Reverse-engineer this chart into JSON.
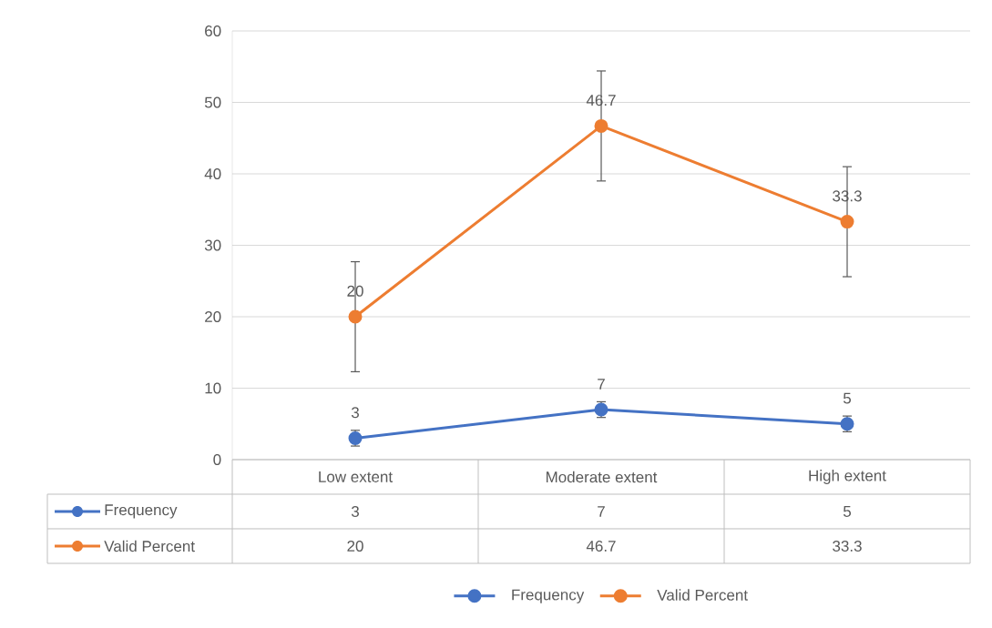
{
  "chart_data": {
    "type": "line",
    "categories": [
      "Low extent",
      "Moderate extent",
      "High extent"
    ],
    "series": [
      {
        "name": "Frequency",
        "color": "#4472c4",
        "values": [
          3,
          7,
          5
        ],
        "errors": [
          1.1,
          1.1,
          1.1
        ],
        "value_labels": [
          "3",
          "7",
          "5"
        ]
      },
      {
        "name": "Valid Percent",
        "color": "#ed7d31",
        "values": [
          20,
          46.7,
          33.3
        ],
        "errors": [
          7.7,
          7.7,
          7.7
        ],
        "value_labels": [
          "20",
          "46.7",
          "33.3"
        ]
      }
    ],
    "ylim": [
      0,
      60
    ],
    "yticks": [
      0,
      10,
      20,
      30,
      40,
      50,
      60
    ],
    "grid": "y",
    "legend": "bottom",
    "marker": "circle",
    "line_style": "solid"
  }
}
